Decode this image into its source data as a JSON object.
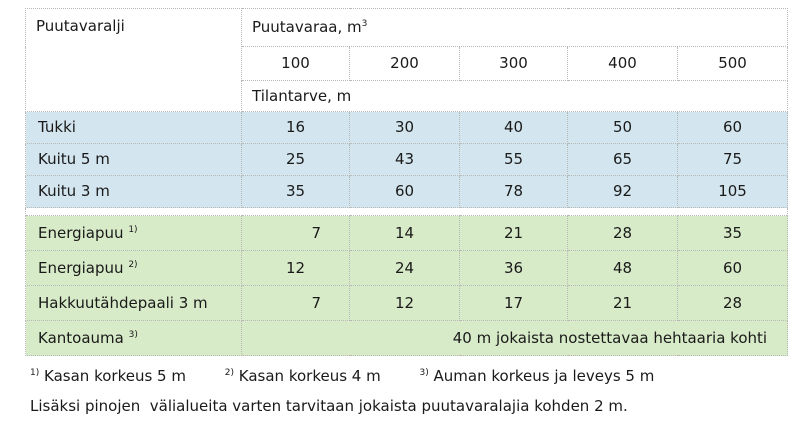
{
  "table": {
    "col_header": "Puutavaralji",
    "volume_header": "Puutavaraa, m",
    "volume_header_sup": "3",
    "volumes": [
      "100",
      "200",
      "300",
      "400",
      "500"
    ],
    "space_header": "Tilantarve, m",
    "group1": [
      {
        "label": "Tukki",
        "sup": "",
        "values": [
          "16",
          "30",
          "40",
          "50",
          "60"
        ]
      },
      {
        "label": "Kuitu 5 m",
        "sup": "",
        "values": [
          "25",
          "43",
          "55",
          "65",
          "75"
        ]
      },
      {
        "label": "Kuitu 3 m",
        "sup": "",
        "values": [
          "35",
          "60",
          "78",
          "92",
          "105"
        ]
      }
    ],
    "group2": [
      {
        "label": "Energiapuu",
        "sup": "1)",
        "values": [
          "7",
          "14",
          "21",
          "28",
          "35"
        ]
      },
      {
        "label": "Energiapuu",
        "sup": "2)",
        "values": [
          "12",
          "24",
          "36",
          "48",
          "60"
        ]
      },
      {
        "label": "Hakkuutähdepaali 3 m",
        "sup": "",
        "values": [
          "7",
          "12",
          "17",
          "21",
          "28"
        ]
      }
    ],
    "kantoauma": {
      "label": "Kantoauma",
      "sup": "3)",
      "text": "40 m jokaista nostettavaa hehtaaria kohti"
    }
  },
  "footnotes": [
    {
      "mark": "1)",
      "text": "Kasan korkeus 5 m"
    },
    {
      "mark": "2)",
      "text": "Kasan korkeus 4 m"
    },
    {
      "mark": "3)",
      "text": "Auman korkeus ja leveys 5 m"
    }
  ],
  "note": "Lisäksi pinojen  välialueita varten tarvitaan jokaista puutavaralajia kohden 2 m.",
  "colors": {
    "blue_band": "#d3e5ee",
    "green_band": "#d8ebc8",
    "grid": "#b8b8b8"
  }
}
